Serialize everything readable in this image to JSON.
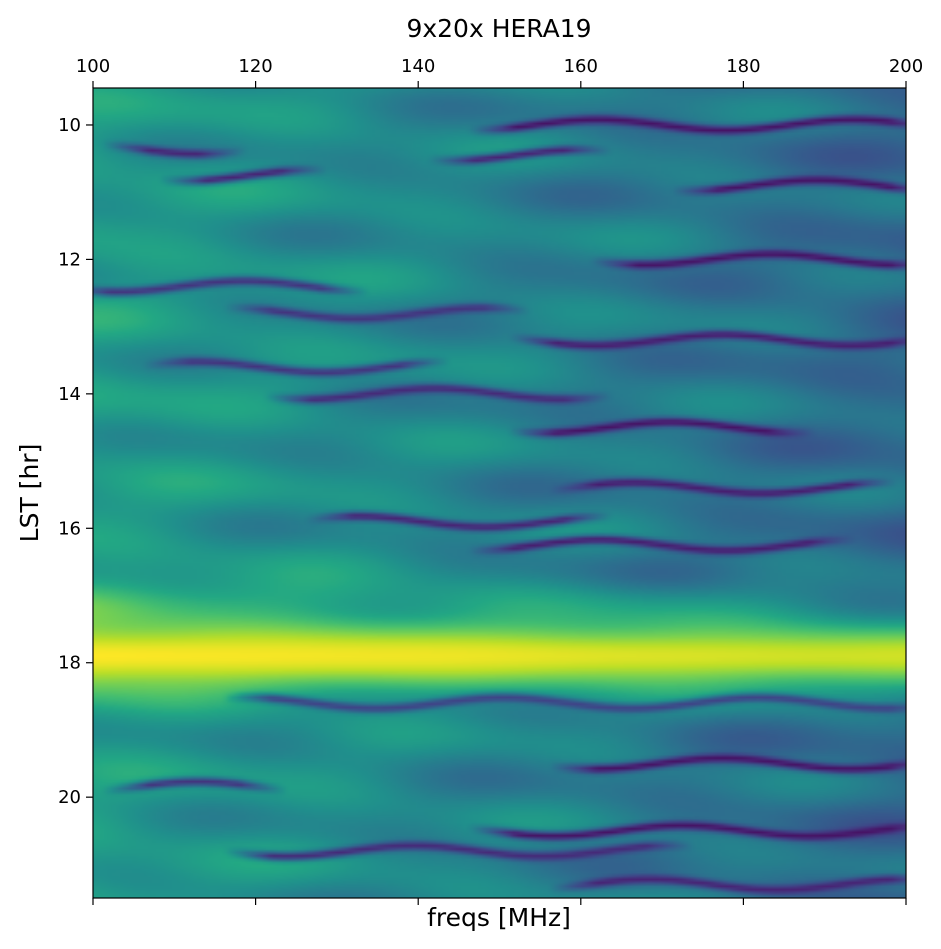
{
  "chart_data": {
    "type": "heatmap",
    "title": "9x20x HERA19",
    "xlabel": "freqs [MHz]",
    "ylabel": "LST [hr]",
    "x_axis_position": "top",
    "xlim": [
      100,
      200
    ],
    "ylim": [
      21.5,
      9.45
    ],
    "x_ticks": [
      100,
      120,
      140,
      160,
      180,
      200
    ],
    "x_tick_labels": [
      "100",
      "120",
      "140",
      "160",
      "180",
      "200"
    ],
    "y_ticks": [
      10,
      12,
      14,
      16,
      18,
      20
    ],
    "y_tick_labels": [
      "10",
      "12",
      "14",
      "16",
      "18",
      "20"
    ],
    "colormap": "viridis",
    "colors": {
      "low": "#440154",
      "mid": "#21918c",
      "high": "#fde725"
    },
    "features": {
      "bright_band_center_lst": 17.9,
      "bright_band_width_lst": 0.75,
      "bright_band_value": 1.0,
      "secondary_band_lst": 17.1,
      "background_low_freq_value": 0.55,
      "background_high_freq_value": 0.35,
      "dark_streaks": [
        {
          "lst": 10.0,
          "f0": 150,
          "f1": 200,
          "value": 0.05
        },
        {
          "lst": 10.35,
          "f0": 105,
          "f1": 115,
          "value": 0.1
        },
        {
          "lst": 10.45,
          "f0": 145,
          "f1": 160,
          "value": 0.1
        },
        {
          "lst": 10.75,
          "f0": 112,
          "f1": 125,
          "value": 0.1
        },
        {
          "lst": 10.9,
          "f0": 175,
          "f1": 200,
          "value": 0.05
        },
        {
          "lst": 12.0,
          "f0": 165,
          "f1": 200,
          "value": 0.05
        },
        {
          "lst": 12.4,
          "f0": 100,
          "f1": 130,
          "value": 0.15
        },
        {
          "lst": 12.8,
          "f0": 120,
          "f1": 150,
          "value": 0.15
        },
        {
          "lst": 13.2,
          "f0": 155,
          "f1": 200,
          "value": 0.08
        },
        {
          "lst": 13.6,
          "f0": 110,
          "f1": 140,
          "value": 0.15
        },
        {
          "lst": 14.0,
          "f0": 125,
          "f1": 160,
          "value": 0.12
        },
        {
          "lst": 14.5,
          "f0": 155,
          "f1": 185,
          "value": 0.05
        },
        {
          "lst": 15.4,
          "f0": 160,
          "f1": 195,
          "value": 0.08
        },
        {
          "lst": 15.9,
          "f0": 130,
          "f1": 160,
          "value": 0.1
        },
        {
          "lst": 16.25,
          "f0": 150,
          "f1": 190,
          "value": 0.08
        },
        {
          "lst": 18.6,
          "f0": 120,
          "f1": 200,
          "value": 0.2
        },
        {
          "lst": 19.5,
          "f0": 160,
          "f1": 200,
          "value": 0.05
        },
        {
          "lst": 19.85,
          "f0": 105,
          "f1": 120,
          "value": 0.15
        },
        {
          "lst": 20.5,
          "f0": 150,
          "f1": 200,
          "value": 0.05
        },
        {
          "lst": 20.8,
          "f0": 120,
          "f1": 170,
          "value": 0.12
        },
        {
          "lst": 21.3,
          "f0": 160,
          "f1": 200,
          "value": 0.1
        }
      ]
    }
  }
}
